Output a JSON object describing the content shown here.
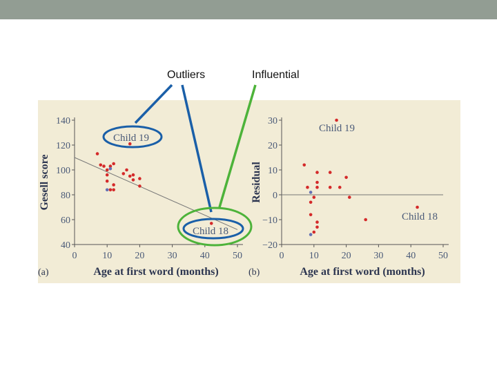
{
  "header": {
    "outliers_label": "Outliers",
    "influential_label": "Influential"
  },
  "colors": {
    "bar": "#929d93",
    "panel": "#f2ecd6",
    "blue": "#1a5fa8",
    "green": "#4db33a",
    "point_red": "#d42a2a",
    "point_blue": "#6470b4"
  },
  "chart_data": [
    {
      "type": "scatter",
      "panel_label": "(a)",
      "xlabel": "Age at first word (months)",
      "ylabel": "Gesell score",
      "xlim": [
        0,
        50
      ],
      "ylim": [
        40,
        140
      ],
      "xticks": [
        "0",
        "10",
        "20",
        "30",
        "40",
        "50"
      ],
      "yticks": [
        "40",
        "60",
        "80",
        "100",
        "120",
        "140"
      ],
      "fit_line": {
        "x": [
          0,
          50
        ],
        "y": [
          110,
          52
        ]
      },
      "points": [
        {
          "x": 7,
          "y": 113
        },
        {
          "x": 8,
          "y": 104
        },
        {
          "x": 9,
          "y": 103
        },
        {
          "x": 10,
          "y": 100
        },
        {
          "x": 10,
          "y": 96
        },
        {
          "x": 10,
          "y": 91
        },
        {
          "x": 11,
          "y": 103
        },
        {
          "x": 11,
          "y": 84
        },
        {
          "x": 12,
          "y": 105
        },
        {
          "x": 12,
          "y": 88
        },
        {
          "x": 12,
          "y": 84
        },
        {
          "x": 15,
          "y": 97
        },
        {
          "x": 16,
          "y": 100
        },
        {
          "x": 17,
          "y": 95
        },
        {
          "x": 18,
          "y": 92
        },
        {
          "x": 18,
          "y": 96
        },
        {
          "x": 20,
          "y": 87
        },
        {
          "x": 20,
          "y": 93
        },
        {
          "x": 17,
          "y": 121
        },
        {
          "x": 42,
          "y": 57
        }
      ],
      "blue_points": [
        {
          "x": 10,
          "y": 84
        },
        {
          "x": 11,
          "y": 101
        }
      ],
      "annotations": [
        {
          "text": "Child 19",
          "x": 18,
          "y": 121
        },
        {
          "text": "Child 18",
          "x": 42,
          "y": 57
        }
      ]
    },
    {
      "type": "scatter",
      "panel_label": "(b)",
      "xlabel": "Age at first word (months)",
      "ylabel": "Residual",
      "xlim": [
        0,
        50
      ],
      "ylim": [
        -20,
        30
      ],
      "xticks": [
        "0",
        "10",
        "20",
        "30",
        "40",
        "50"
      ],
      "yticks": [
        "−20",
        "−10",
        "0",
        "10",
        "20",
        "30"
      ],
      "zero_line": true,
      "points": [
        {
          "x": 7,
          "y": 12
        },
        {
          "x": 8,
          "y": 3
        },
        {
          "x": 9,
          "y": -3
        },
        {
          "x": 9,
          "y": -8
        },
        {
          "x": 10,
          "y": -1
        },
        {
          "x": 10,
          "y": -15
        },
        {
          "x": 11,
          "y": 9
        },
        {
          "x": 11,
          "y": 5
        },
        {
          "x": 11,
          "y": 3
        },
        {
          "x": 11,
          "y": -11
        },
        {
          "x": 11,
          "y": -13
        },
        {
          "x": 15,
          "y": 3
        },
        {
          "x": 15,
          "y": 9
        },
        {
          "x": 17,
          "y": 30
        },
        {
          "x": 18,
          "y": 3
        },
        {
          "x": 20,
          "y": 7
        },
        {
          "x": 21,
          "y": -1
        },
        {
          "x": 26,
          "y": -10
        },
        {
          "x": 42,
          "y": -5
        }
      ],
      "blue_points": [
        {
          "x": 9,
          "y": 1
        },
        {
          "x": 9,
          "y": -16
        }
      ],
      "annotations": [
        {
          "text": "Child 19",
          "x": 17,
          "y": 27
        },
        {
          "text": "Child 18",
          "x": 42,
          "y": -9
        }
      ]
    }
  ]
}
